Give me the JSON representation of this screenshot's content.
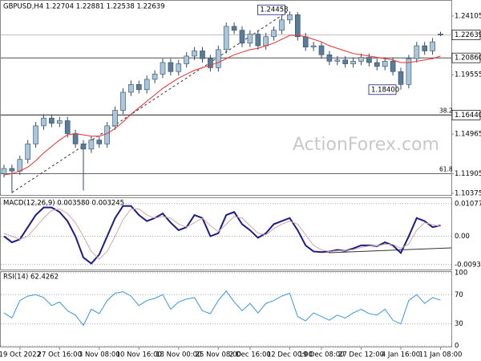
{
  "chart_data": [
    {
      "type": "candlestick",
      "title": "GBPUSD,H4 1.22704 1.22881 1.22538 1.22639",
      "categories": [
        null,
        null,
        "19 Oct 2022",
        null,
        null,
        null,
        null,
        "27 Oct 16:00",
        null,
        null,
        null,
        null,
        "3 Nov 08:00",
        null,
        null,
        null,
        null,
        "10 Nov 16:00",
        null,
        null,
        null,
        null,
        "18 Nov 00:00",
        null,
        null,
        null,
        null,
        "25 Nov 08:00",
        null,
        null,
        null,
        "2 Dec 16:00",
        null,
        null,
        null,
        null,
        "12 Dec 00:00",
        null,
        null,
        null,
        "19 Dec 08:00",
        null,
        null,
        null,
        null,
        "27 Dec 12:00",
        null,
        null,
        null,
        null,
        "4 Jan 16:00",
        null,
        null,
        null,
        null,
        "11 Jan 08:00"
      ],
      "open": [
        1.119,
        1.123,
        1.121,
        1.13,
        1.142,
        1.156,
        1.162,
        1.158,
        1.16,
        1.15,
        1.142,
        1.138,
        1.145,
        1.142,
        1.156,
        1.168,
        1.182,
        1.188,
        1.184,
        1.192,
        1.196,
        1.205,
        1.198,
        1.204,
        1.21,
        1.214,
        1.208,
        1.201,
        1.215,
        1.233,
        1.23,
        1.22,
        1.227,
        1.218,
        1.225,
        1.23,
        1.238,
        1.242,
        1.225,
        1.217,
        1.218,
        1.211,
        1.206,
        1.207,
        1.204,
        1.206,
        1.209,
        1.205,
        1.202,
        1.206,
        1.198,
        1.188,
        1.208,
        1.218,
        1.214,
        1.22704
      ],
      "high": [
        1.126,
        1.126,
        1.133,
        1.145,
        1.159,
        1.165,
        1.165,
        1.163,
        1.163,
        1.153,
        1.145,
        1.148,
        1.148,
        1.159,
        1.171,
        1.185,
        1.191,
        1.191,
        1.195,
        1.199,
        1.208,
        1.208,
        1.207,
        1.213,
        1.217,
        1.217,
        1.211,
        1.218,
        1.236,
        1.236,
        1.233,
        1.23,
        1.23,
        1.228,
        1.233,
        1.241,
        1.24458,
        1.244,
        1.228,
        1.221,
        1.221,
        1.214,
        1.21,
        1.21,
        1.209,
        1.212,
        1.212,
        1.208,
        1.209,
        1.209,
        1.201,
        1.211,
        1.221,
        1.221,
        1.224,
        1.22881
      ],
      "low": [
        1.116,
        1.104,
        1.118,
        1.127,
        1.139,
        1.153,
        1.155,
        1.155,
        1.147,
        1.139,
        1.106,
        1.135,
        1.139,
        1.139,
        1.153,
        1.165,
        1.179,
        1.181,
        1.181,
        1.189,
        1.193,
        1.195,
        1.195,
        1.201,
        1.207,
        1.205,
        1.198,
        1.198,
        1.212,
        1.227,
        1.217,
        1.217,
        1.215,
        1.215,
        1.222,
        1.227,
        1.235,
        1.222,
        1.214,
        1.214,
        1.208,
        1.203,
        1.203,
        1.201,
        1.201,
        1.203,
        1.202,
        1.199,
        1.199,
        1.195,
        1.184,
        1.185,
        1.205,
        1.211,
        1.211,
        1.22538
      ],
      "close": [
        1.123,
        1.121,
        1.13,
        1.142,
        1.156,
        1.162,
        1.158,
        1.16,
        1.15,
        1.142,
        1.138,
        1.145,
        1.142,
        1.156,
        1.168,
        1.182,
        1.188,
        1.184,
        1.192,
        1.196,
        1.205,
        1.198,
        1.204,
        1.21,
        1.214,
        1.208,
        1.201,
        1.215,
        1.233,
        1.23,
        1.22,
        1.227,
        1.218,
        1.225,
        1.23,
        1.238,
        1.242,
        1.225,
        1.217,
        1.218,
        1.211,
        1.206,
        1.207,
        1.204,
        1.206,
        1.209,
        1.205,
        1.202,
        1.206,
        1.198,
        1.188,
        1.208,
        1.218,
        1.214,
        1.221,
        1.22639
      ],
      "up_color": "#a9c6dc",
      "down_color": "#5b7c99",
      "edge_color": "#2f4a63",
      "moving_average": {
        "color": "#e8302c",
        "values": [
          1.118,
          1.119,
          1.121,
          1.124,
          1.129,
          1.135,
          1.14,
          1.145,
          1.149,
          1.15,
          1.149,
          1.148,
          1.148,
          1.15,
          1.154,
          1.159,
          1.165,
          1.17,
          1.175,
          1.18,
          1.185,
          1.189,
          1.193,
          1.196,
          1.199,
          1.201,
          1.203,
          1.205,
          1.208,
          1.211,
          1.213,
          1.215,
          1.216,
          1.218,
          1.22,
          1.223,
          1.226,
          1.226,
          1.225,
          1.223,
          1.221,
          1.218,
          1.216,
          1.214,
          1.212,
          1.211,
          1.21,
          1.209,
          1.208,
          1.207,
          1.205,
          1.205,
          1.206,
          1.207,
          1.208,
          1.21
        ]
      },
      "ylim": [
        1.1025,
        1.2528
      ],
      "yticks": [
        1.24105,
        1.19555,
        1.14965,
        1.11905,
        1.10375
      ],
      "level_lines": [
        {
          "value": 1.22639,
          "label": "1.22639"
        },
        {
          "value": 1.2086,
          "label": "1.20860"
        },
        {
          "value": 1.1644,
          "label": "1.16440"
        }
      ],
      "fib_levels": [
        {
          "value": 1.1644,
          "label": "38.2"
        },
        {
          "value": 1.11905,
          "label": "61.8"
        }
      ],
      "annotations": [
        "1.24458",
        "1.18400",
        "ActionForex.com"
      ]
    },
    {
      "type": "line",
      "title": "MACD(12,26,9) 0.003580 0.003245",
      "series": [
        {
          "color": "#1c1c84",
          "values": [
            0.0,
            -0.002,
            -0.001,
            0.003,
            0.007,
            0.0095,
            0.0095,
            0.008,
            0.005,
            0.0,
            -0.007,
            -0.009,
            -0.006,
            0.0,
            0.006,
            0.01,
            0.01,
            0.007,
            0.005,
            0.006,
            0.0075,
            0.0045,
            0.002,
            0.003,
            0.007,
            0.006,
            0.0,
            0.001,
            0.007,
            0.008,
            0.004,
            0.002,
            -0.0005,
            0.001,
            0.004,
            0.005,
            0.006,
            0.002,
            -0.003,
            -0.005,
            -0.0052,
            -0.005,
            -0.0045,
            -0.0048,
            -0.004,
            -0.003,
            -0.003,
            -0.0033,
            -0.002,
            -0.003,
            -0.0055,
            0.0,
            0.006,
            0.005,
            0.003,
            0.00358
          ]
        },
        {
          "color": "#d4a6a6",
          "values": [
            0.001,
            0.0,
            -0.001,
            0.0,
            0.003,
            0.006,
            0.0085,
            0.009,
            0.0075,
            0.0045,
            0.0,
            -0.005,
            -0.0075,
            -0.005,
            0.0,
            0.0055,
            0.009,
            0.009,
            0.007,
            0.006,
            0.0065,
            0.006,
            0.004,
            0.003,
            0.0045,
            0.006,
            0.0035,
            0.0015,
            0.004,
            0.0065,
            0.006,
            0.0035,
            0.001,
            0.0005,
            0.0025,
            0.004,
            0.005,
            0.004,
            0.0005,
            -0.003,
            -0.0045,
            -0.005,
            -0.0048,
            -0.0047,
            -0.0044,
            -0.0037,
            -0.0032,
            -0.0032,
            -0.0026,
            -0.0027,
            -0.004,
            -0.0025,
            0.002,
            0.0045,
            0.0038,
            0.003245
          ]
        }
      ],
      "ylim": [
        -0.0107,
        0.0123
      ],
      "yticks": [
        0.010774,
        {
          "value": 0,
          "label": "0.00"
        },
        -0.009328
      ]
    },
    {
      "type": "line",
      "title": "RSI(14) 62.4262",
      "series": [
        {
          "color": "#3c96dc",
          "values": [
            45,
            38,
            62,
            68,
            70,
            66,
            55,
            60,
            48,
            42,
            28,
            50,
            44,
            62,
            72,
            74,
            68,
            55,
            62,
            65,
            70,
            50,
            60,
            64,
            66,
            48,
            44,
            62,
            75,
            60,
            48,
            58,
            45,
            58,
            62,
            68,
            72,
            40,
            34,
            45,
            40,
            35,
            42,
            38,
            45,
            50,
            44,
            42,
            50,
            35,
            30,
            62,
            70,
            58,
            66,
            62.4262
          ]
        }
      ],
      "ylim": [
        0,
        100
      ],
      "yticks": [
        100,
        70,
        30,
        0
      ]
    }
  ]
}
